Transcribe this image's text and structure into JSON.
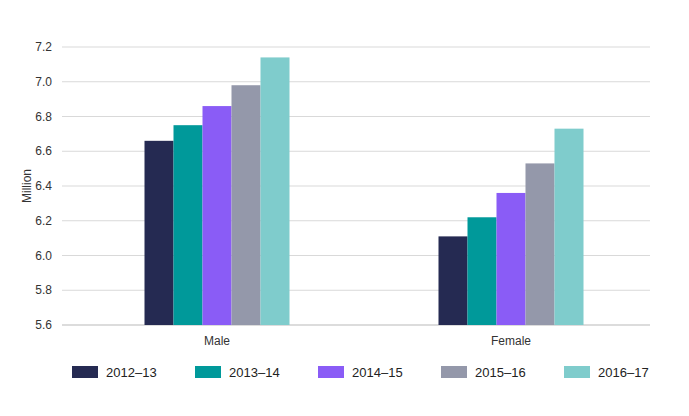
{
  "chart_data": {
    "type": "bar",
    "y_label": "Million",
    "categories": [
      "Male",
      "Female"
    ],
    "series": [
      {
        "name": "2012–13",
        "color": "#252a52",
        "values": [
          6.66,
          6.11
        ]
      },
      {
        "name": "2013–14",
        "color": "#00999a",
        "values": [
          6.75,
          6.22
        ]
      },
      {
        "name": "2014–15",
        "color": "#8a5cf6",
        "values": [
          6.86,
          6.36
        ]
      },
      {
        "name": "2015–16",
        "color": "#9498aa",
        "values": [
          6.98,
          6.53
        ]
      },
      {
        "name": "2016–17",
        "color": "#7fcccc",
        "values": [
          7.14,
          6.73
        ]
      }
    ],
    "ylim": [
      5.6,
      7.2
    ],
    "yticks": [
      5.6,
      5.8,
      {
        "value": 6,
        "label": "6.0"
      },
      6.2,
      6.4,
      6.6,
      6.8,
      {
        "value": 7,
        "label": "7.0"
      },
      7.2
    ],
    "grid": true,
    "legend": "bottom"
  }
}
